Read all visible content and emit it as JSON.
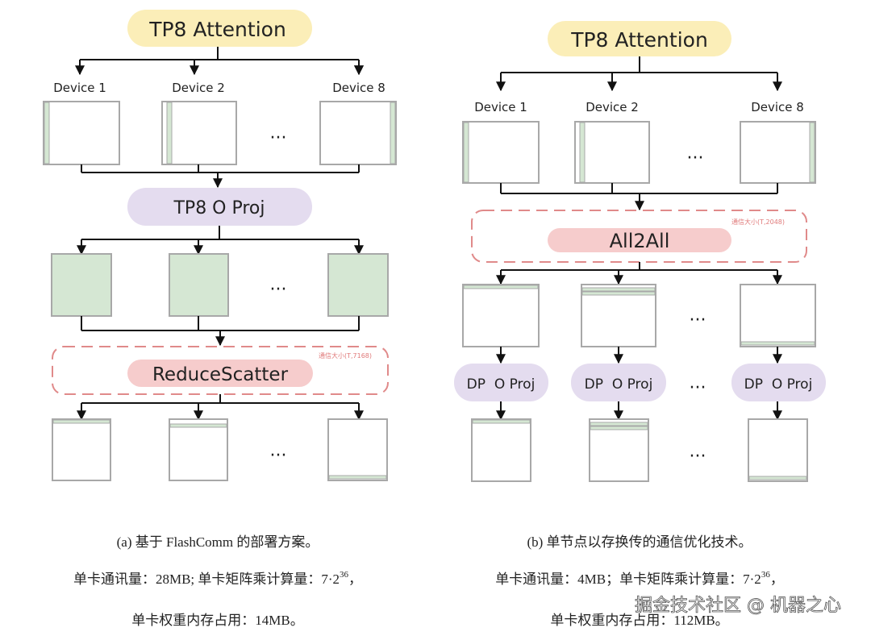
{
  "left": {
    "top_node": "TP8 Attention",
    "devices": [
      "Device 1",
      "Device 2",
      "Device 8"
    ],
    "ellipsis": "···",
    "mid_node": "TP8 O Proj",
    "comm_node": "ReduceScatter",
    "comm_size": "通信大小(T,7168)",
    "caption": "(a) 基于 FlashComm 的部署方案。",
    "stat_comm": "单卡通讯量：28MB; 单卡矩阵乘计算量：7·2",
    "stat_exp": "36",
    "stat_tail": "，",
    "stat_mem": "单卡权重内存占用：14MB。"
  },
  "right": {
    "top_node": "TP8 Attention",
    "devices": [
      "Device 1",
      "Device 2",
      "Device 8"
    ],
    "ellipsis": "···",
    "comm_node": "All2All",
    "comm_size": "通信大小(T,2048)",
    "proj_node": "DP  O Proj",
    "caption": "(b) 单节点以存换传的通信优化技术。",
    "stat_comm": "单卡通讯量：4MB；单卡矩阵乘计算量：7·2",
    "stat_exp": "36",
    "stat_tail": "，",
    "stat_mem": "单卡权重内存占用：112MB。"
  },
  "watermark": "掘金技术社区 @ 机器之心",
  "colors": {
    "attention": "#fbeeb8",
    "proj": "#e4dcef",
    "comm": "#f6cccc",
    "dashed": "#e08a8a",
    "shard": "#d5e7d3"
  }
}
